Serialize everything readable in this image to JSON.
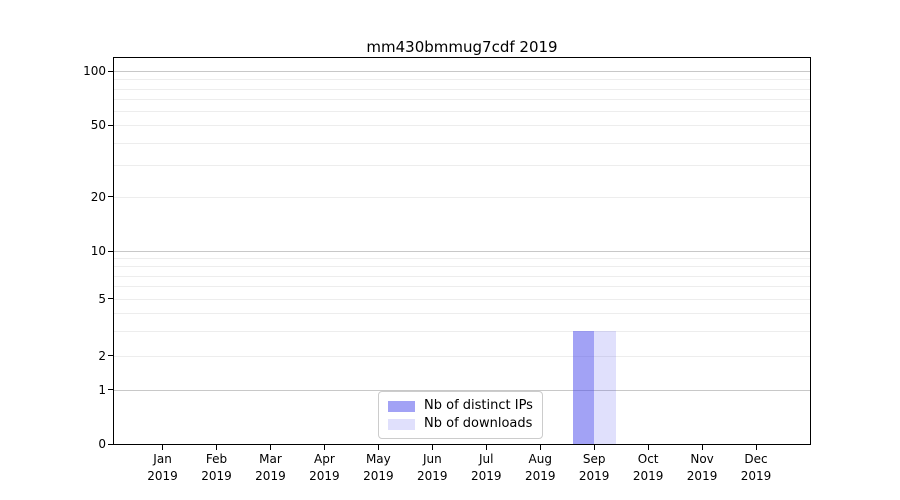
{
  "chart_data": {
    "type": "bar",
    "title": "mm430bmmug7cdf 2019",
    "categories": [
      {
        "label": "Jan",
        "sublabel": "2019"
      },
      {
        "label": "Feb",
        "sublabel": "2019"
      },
      {
        "label": "Mar",
        "sublabel": "2019"
      },
      {
        "label": "Apr",
        "sublabel": "2019"
      },
      {
        "label": "May",
        "sublabel": "2019"
      },
      {
        "label": "Jun",
        "sublabel": "2019"
      },
      {
        "label": "Jul",
        "sublabel": "2019"
      },
      {
        "label": "Aug",
        "sublabel": "2019"
      },
      {
        "label": "Sep",
        "sublabel": "2019"
      },
      {
        "label": "Oct",
        "sublabel": "2019"
      },
      {
        "label": "Nov",
        "sublabel": "2019"
      },
      {
        "label": "Dec",
        "sublabel": "2019"
      }
    ],
    "series": [
      {
        "name": "Nb of distinct IPs",
        "color": "rgba(70,70,235,0.5)",
        "values": [
          0,
          0,
          0,
          0,
          0,
          0,
          0,
          0,
          3,
          0,
          0,
          0
        ]
      },
      {
        "name": "Nb of downloads",
        "color": "rgba(70,70,235,0.17)",
        "values": [
          0,
          0,
          0,
          0,
          0,
          0,
          0,
          0,
          3,
          0,
          0,
          0
        ]
      }
    ],
    "bar_width_units": 0.4,
    "x_axis": {
      "unit_span": 12.9,
      "first_center_offset_units": 0.9
    },
    "y_axis": {
      "scale": "symlog-like",
      "ylim": [
        0,
        117
      ],
      "ticks": [
        {
          "value": 0,
          "frac": 0.0
        },
        {
          "value": 1,
          "frac": 0.14
        },
        {
          "value": 2,
          "frac": 0.228
        },
        {
          "value": 5,
          "frac": 0.376
        },
        {
          "value": 10,
          "frac": 0.5
        },
        {
          "value": 20,
          "frac": 0.64
        },
        {
          "value": 50,
          "frac": 0.826
        },
        {
          "value": 100,
          "frac": 0.966
        }
      ],
      "major_gridlines": [
        1,
        10,
        100
      ],
      "minor_gridlines": [
        2,
        3,
        4,
        5,
        6,
        7,
        8,
        9,
        20,
        30,
        40,
        50,
        60,
        70,
        80,
        90
      ]
    },
    "legend": {
      "position": "inside-bottom-center"
    },
    "colors": {
      "major_grid": "#c8c8c8",
      "minor_grid": "#ededed",
      "spine": "#000000",
      "bar_distinct_ips_rendered": "#a2a2f0",
      "bar_downloads_rendered": "#dbdbf8"
    }
  }
}
